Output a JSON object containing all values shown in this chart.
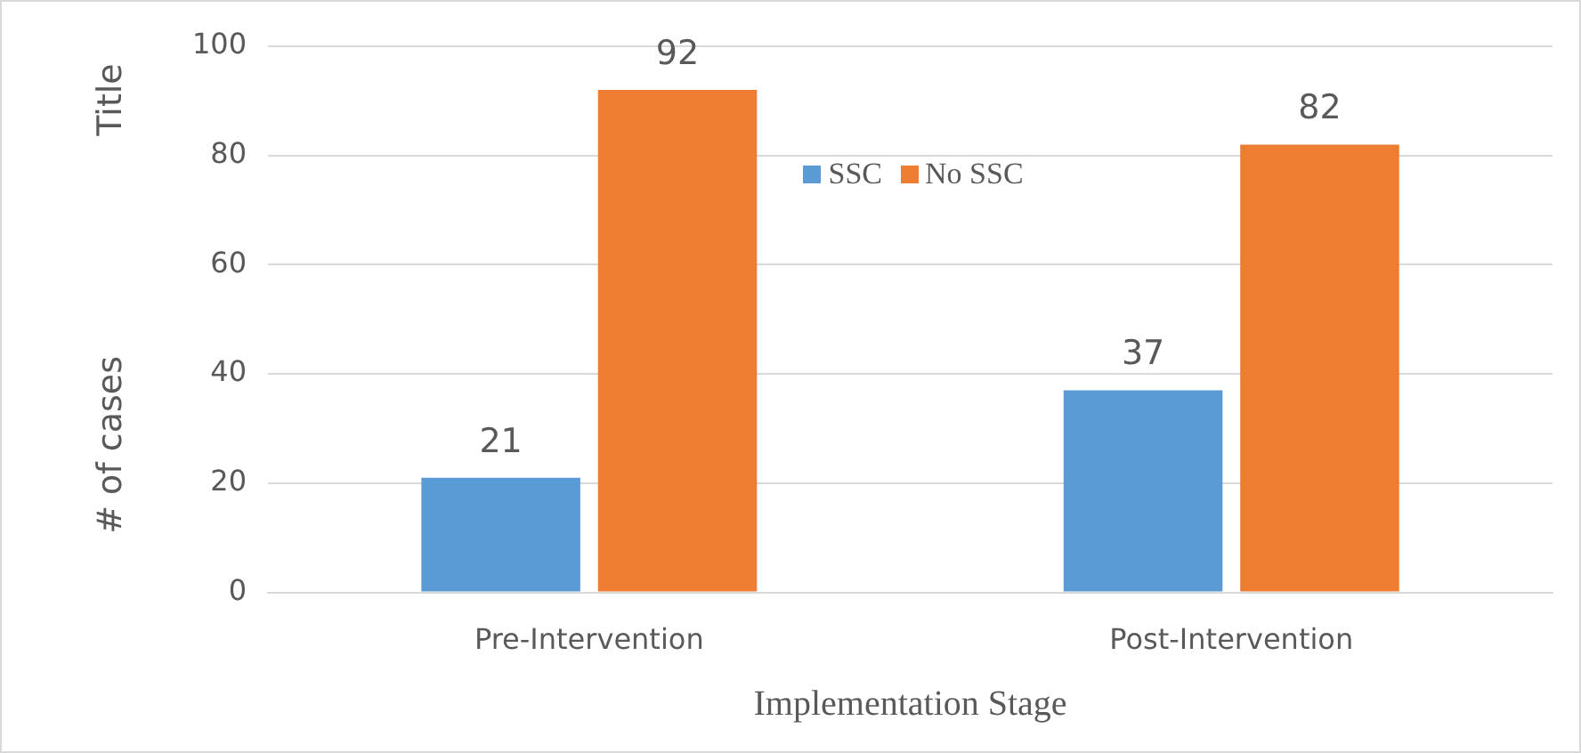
{
  "chart_data": {
    "type": "bar",
    "xlabel": "Implementation Stage",
    "ylabel": "# of cases",
    "annotations": [
      "Title"
    ],
    "categories": [
      "Pre-Intervention",
      "Post-Intervention"
    ],
    "series": [
      {
        "name": "SSC",
        "color": "#5b9bd5",
        "values": [
          21,
          37
        ]
      },
      {
        "name": "No SSC",
        "color": "#ed7d31",
        "values": [
          92,
          82
        ]
      }
    ],
    "ylim": [
      0,
      100
    ],
    "yticks": [
      0,
      20,
      40,
      60,
      80,
      100
    ],
    "grid": "y",
    "legend": "top",
    "data_labels": true
  }
}
